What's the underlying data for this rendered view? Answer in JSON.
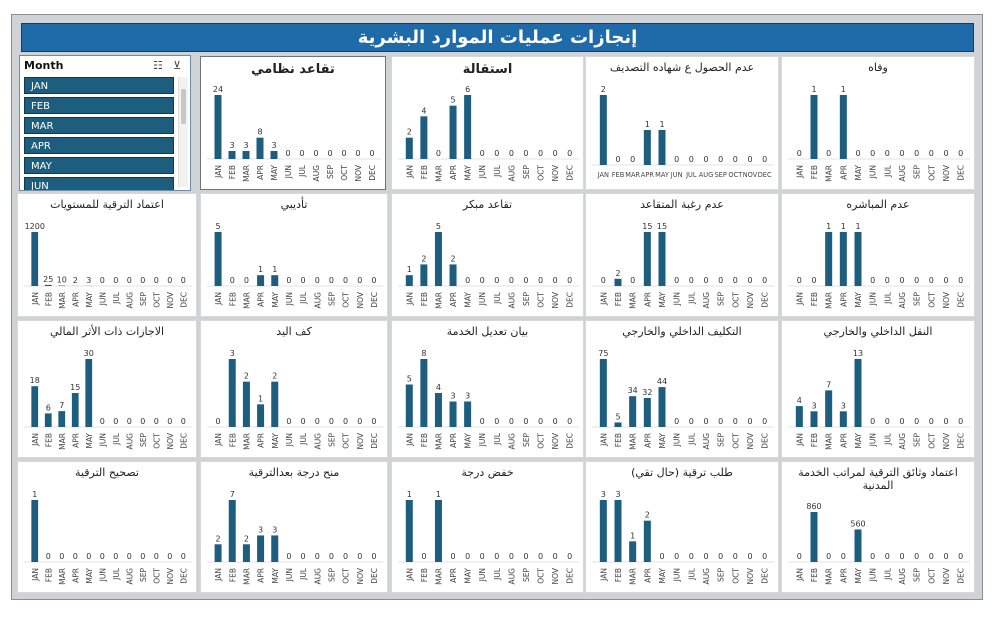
{
  "dashboard": {
    "title": "إنجازات عمليات الموارد البشرية"
  },
  "slicer": {
    "header": "Month",
    "icons": [
      "multi-select-icon",
      "clear-filter-icon"
    ],
    "items": [
      "JAN",
      "FEB",
      "MAR",
      "APR",
      "MAY",
      "JUN"
    ]
  },
  "colors": {
    "bar": "#1d5e7f",
    "title_bar": "#1f6aa8",
    "grid": "#e3e3e3"
  },
  "chart_data": [
    {
      "type": "bar",
      "title": "وفاه",
      "categories": [
        "JAN",
        "FEB",
        "MAR",
        "APR",
        "MAY",
        "JUN",
        "JUL",
        "AUG",
        "SEP",
        "OCT",
        "NOV",
        "DEC"
      ],
      "values": [
        0,
        1,
        0,
        1,
        0,
        0,
        0,
        0,
        0,
        0,
        0,
        0
      ],
      "label_orientation": "vertical",
      "grid": true
    },
    {
      "type": "bar",
      "title": "عدم الحصول ع شهاده التصديف",
      "categories": [
        "JAN",
        "FEB",
        "MAR",
        "APR",
        "MAY",
        "JUN",
        "JUL",
        "AUG",
        "SEP",
        "OCT",
        "NOV",
        "DEC"
      ],
      "values": [
        2,
        0,
        0,
        1,
        1,
        0,
        0,
        0,
        0,
        0,
        0,
        0
      ],
      "label_orientation": "horizontal",
      "grid": true
    },
    {
      "type": "bar",
      "title": "استقالة",
      "categories": [
        "JAN",
        "FEB",
        "MAR",
        "APR",
        "MAY",
        "JUN",
        "JUL",
        "AUG",
        "SEP",
        "OCT",
        "NOV",
        "DEC"
      ],
      "values": [
        2,
        4,
        0,
        5,
        6,
        0,
        0,
        0,
        0,
        0,
        0,
        0
      ],
      "label_orientation": "vertical",
      "grid": true,
      "title_bold": true
    },
    {
      "type": "bar",
      "title": "تقاعد نظامي",
      "categories": [
        "JAN",
        "FEB",
        "MAR",
        "APR",
        "MAY",
        "JUN",
        "JUL",
        "AUG",
        "SEP",
        "OCT",
        "NOV",
        "DEC"
      ],
      "values": [
        24,
        3,
        3,
        8,
        3,
        0,
        0,
        0,
        0,
        0,
        0,
        0
      ],
      "label_orientation": "vertical",
      "grid": true,
      "title_bold": true
    },
    {
      "type": "bar",
      "title": "عدم المباشره",
      "categories": [
        "JAN",
        "FEB",
        "MAR",
        "APR",
        "MAY",
        "JUN",
        "JUL",
        "AUG",
        "SEP",
        "OCT",
        "NOV",
        "DEC"
      ],
      "values": [
        0,
        0,
        1,
        1,
        1,
        0,
        0,
        0,
        0,
        0,
        0,
        0
      ],
      "label_orientation": "vertical",
      "grid": true
    },
    {
      "type": "bar",
      "title": "عدم رغبة المتقاعد",
      "categories": [
        "JAN",
        "FEB",
        "MAR",
        "APR",
        "MAY",
        "JUN",
        "JUL",
        "AUG",
        "SEP",
        "OCT",
        "NOV",
        "DEC"
      ],
      "values": [
        0,
        2,
        0,
        15,
        15,
        0,
        0,
        0,
        0,
        0,
        0,
        0
      ],
      "label_orientation": "vertical",
      "grid": true
    },
    {
      "type": "bar",
      "title": "تقاعد مبكر",
      "categories": [
        "JAN",
        "FEB",
        "MAR",
        "APR",
        "MAY",
        "JUN",
        "JUL",
        "AUG",
        "SEP",
        "OCT",
        "NOV",
        "DEC"
      ],
      "values": [
        1,
        2,
        5,
        2,
        0,
        0,
        0,
        0,
        0,
        0,
        0,
        0
      ],
      "label_orientation": "vertical",
      "grid": true
    },
    {
      "type": "bar",
      "title": "تأديبي",
      "categories": [
        "JAN",
        "FEB",
        "MAR",
        "APR",
        "MAY",
        "JUN",
        "JUL",
        "AUG",
        "SEP",
        "OCT",
        "NOV",
        "DEC"
      ],
      "values": [
        5,
        0,
        0,
        1,
        1,
        0,
        0,
        0,
        0,
        0,
        0,
        0
      ],
      "label_orientation": "vertical",
      "grid": true
    },
    {
      "type": "bar",
      "title": "اعتماد الترقية للمستويات",
      "categories": [
        "JAN",
        "FEB",
        "MAR",
        "APR",
        "MAY",
        "JUN",
        "JUL",
        "AUG",
        "SEP",
        "OCT",
        "NOV",
        "DEC"
      ],
      "values": [
        1200,
        25,
        10,
        2,
        3,
        0,
        0,
        0,
        0,
        0,
        0,
        0
      ],
      "label_orientation": "vertical",
      "grid": true
    },
    {
      "type": "bar",
      "title": "النقل الداخلي والخارجي",
      "categories": [
        "JAN",
        "FEB",
        "MAR",
        "APR",
        "MAY",
        "JUN",
        "JUL",
        "AUG",
        "SEP",
        "OCT",
        "NOV",
        "DEC"
      ],
      "values": [
        4,
        3,
        7,
        3,
        13,
        0,
        0,
        0,
        0,
        0,
        0,
        0
      ],
      "label_orientation": "vertical",
      "grid": true
    },
    {
      "type": "bar",
      "title": "التكليف الداخلي والخارجي",
      "categories": [
        "JAN",
        "FEB",
        "MAR",
        "APR",
        "MAY",
        "JUN",
        "JUL",
        "AUG",
        "SEP",
        "OCT",
        "NOV",
        "DEC"
      ],
      "values": [
        75,
        5,
        34,
        32,
        44,
        0,
        0,
        0,
        0,
        0,
        0,
        0
      ],
      "label_orientation": "vertical",
      "grid": true
    },
    {
      "type": "bar",
      "title": "بيان تعديل الخدمة",
      "categories": [
        "JAN",
        "FEB",
        "MAR",
        "APR",
        "MAY",
        "JUN",
        "JUL",
        "AUG",
        "SEP",
        "OCT",
        "NOV",
        "DEC"
      ],
      "values": [
        5,
        8,
        4,
        3,
        3,
        0,
        0,
        0,
        0,
        0,
        0,
        0
      ],
      "label_orientation": "vertical",
      "grid": true
    },
    {
      "type": "bar",
      "title": "كف اليد",
      "categories": [
        "JAN",
        "FEB",
        "MAR",
        "APR",
        "MAY",
        "JUN",
        "JUL",
        "AUG",
        "SEP",
        "OCT",
        "NOV",
        "DEC"
      ],
      "values": [
        0,
        3,
        2,
        1,
        2,
        0,
        0,
        0,
        0,
        0,
        0,
        0
      ],
      "label_orientation": "vertical",
      "grid": true
    },
    {
      "type": "bar",
      "title": "الاجازات ذات الأثر المالي",
      "categories": [
        "JAN",
        "FEB",
        "MAR",
        "APR",
        "MAY",
        "JUN",
        "JUL",
        "AUG",
        "SEP",
        "OCT",
        "NOV",
        "DEC"
      ],
      "values": [
        18,
        6,
        7,
        15,
        30,
        0,
        0,
        0,
        0,
        0,
        0,
        0
      ],
      "label_orientation": "vertical",
      "grid": true
    },
    {
      "type": "bar",
      "title": "اعتماد وثائق الترقية لمراتب الخدمة المدنية",
      "categories": [
        "JAN",
        "FEB",
        "MAR",
        "APR",
        "MAY",
        "JUN",
        "JUL",
        "AUG",
        "SEP",
        "OCT",
        "NOV",
        "DEC"
      ],
      "values": [
        0,
        860,
        0,
        0,
        560,
        0,
        0,
        0,
        0,
        0,
        0,
        0
      ],
      "label_orientation": "vertical",
      "grid": true
    },
    {
      "type": "bar",
      "title": "طلب ترقية (حال تقي)",
      "categories": [
        "JAN",
        "FEB",
        "MAR",
        "APR",
        "MAY",
        "JUN",
        "JUL",
        "AUG",
        "SEP",
        "OCT",
        "NOV",
        "DEC"
      ],
      "values": [
        3,
        3,
        1,
        2,
        0,
        0,
        0,
        0,
        0,
        0,
        0,
        0
      ],
      "label_orientation": "vertical",
      "grid": true
    },
    {
      "type": "bar",
      "title": "خفض درجة",
      "categories": [
        "JAN",
        "FEB",
        "MAR",
        "APR",
        "MAY",
        "JUN",
        "JUL",
        "AUG",
        "SEP",
        "OCT",
        "NOV",
        "DEC"
      ],
      "values": [
        1,
        0,
        1,
        0,
        0,
        0,
        0,
        0,
        0,
        0,
        0,
        0
      ],
      "label_orientation": "vertical",
      "grid": true
    },
    {
      "type": "bar",
      "title": "منح درجة بعدالترقية",
      "categories": [
        "JAN",
        "FEB",
        "MAR",
        "APR",
        "MAY",
        "JUN",
        "JUL",
        "AUG",
        "SEP",
        "OCT",
        "NOV",
        "DEC"
      ],
      "values": [
        2,
        7,
        2,
        3,
        3,
        0,
        0,
        0,
        0,
        0,
        0,
        0
      ],
      "label_orientation": "vertical",
      "grid": true
    },
    {
      "type": "bar",
      "title": "تصحيح الترقية",
      "categories": [
        "JAN",
        "FEB",
        "MAR",
        "APR",
        "MAY",
        "JUN",
        "JUL",
        "AUG",
        "SEP",
        "OCT",
        "NOV",
        "DEC"
      ],
      "values": [
        1,
        0,
        0,
        0,
        0,
        0,
        0,
        0,
        0,
        0,
        0,
        0
      ],
      "label_orientation": "vertical",
      "grid": true
    }
  ]
}
